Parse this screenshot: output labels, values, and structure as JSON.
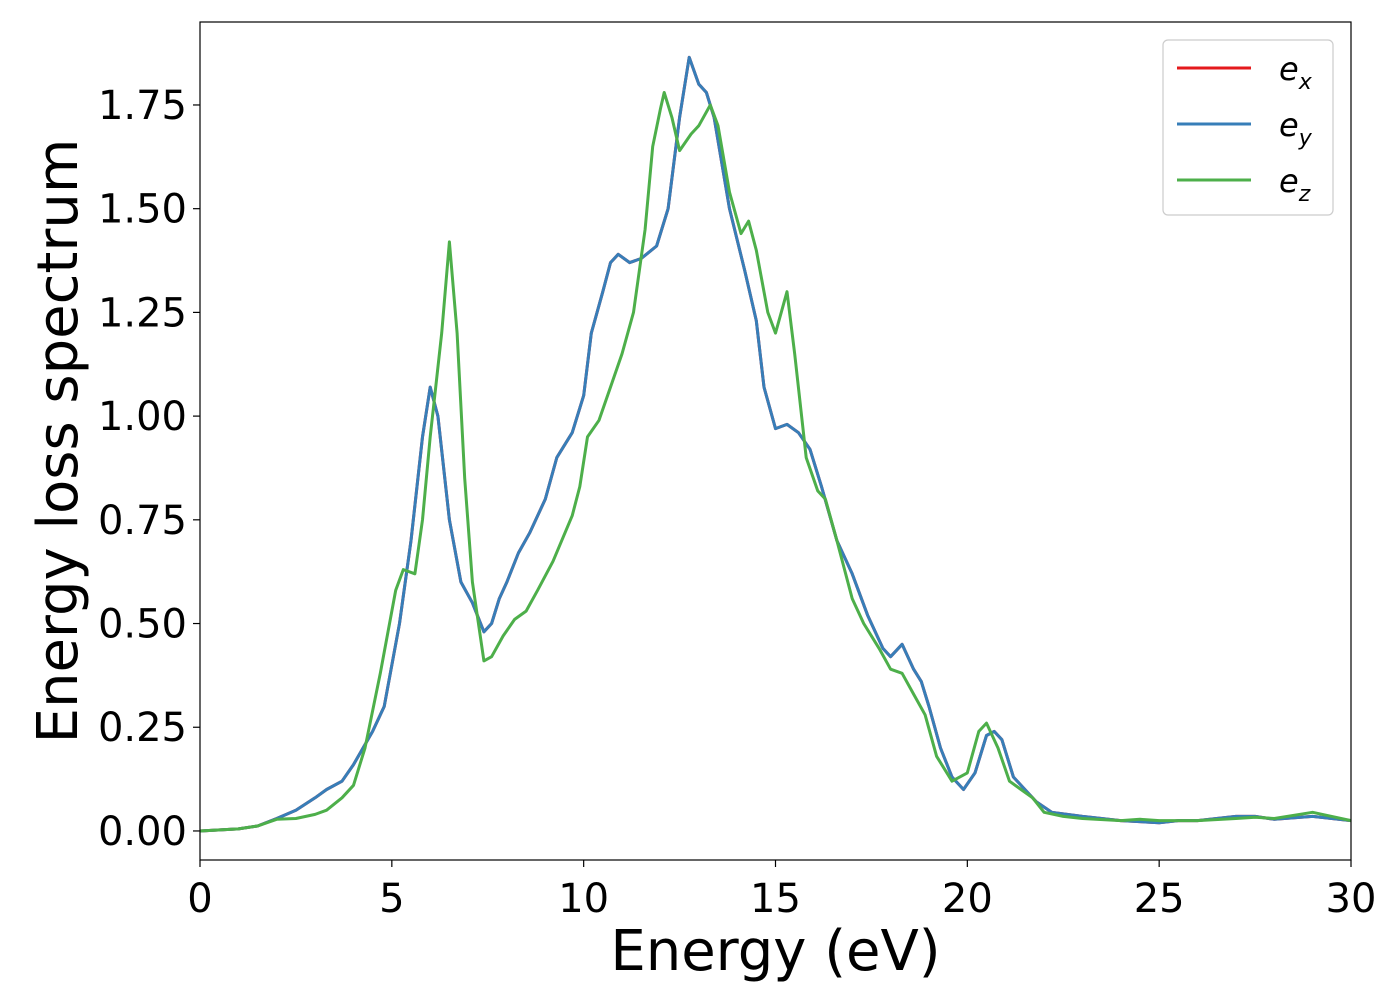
{
  "chart_data": {
    "type": "line",
    "xlabel": "Energy (eV)",
    "ylabel": "Energy loss spectrum",
    "xlim": [
      0,
      30
    ],
    "ylim": [
      -0.07,
      1.95
    ],
    "xticks": [
      0,
      5,
      10,
      15,
      20,
      25,
      30
    ],
    "xtick_labels": [
      "0",
      "5",
      "10",
      "15",
      "20",
      "25",
      "30"
    ],
    "yticks": [
      0,
      0.25,
      0.5,
      0.75,
      1.0,
      1.25,
      1.5,
      1.75
    ],
    "ytick_labels": [
      "0.00",
      "0.25",
      "0.50",
      "0.75",
      "1.00",
      "1.25",
      "1.50",
      "1.75"
    ],
    "grid": false,
    "legend_position": "top-right",
    "series": [
      {
        "name": "e_x",
        "legend_base": "e",
        "legend_sub": "x",
        "color": "#e41a1c",
        "points": [
          [
            0,
            0
          ],
          [
            1,
            0.005
          ],
          [
            1.5,
            0.012
          ],
          [
            2,
            0.03
          ],
          [
            2.5,
            0.05
          ],
          [
            3,
            0.08
          ],
          [
            3.3,
            0.1
          ],
          [
            3.7,
            0.12
          ],
          [
            4,
            0.16
          ],
          [
            4.5,
            0.24
          ],
          [
            4.8,
            0.3
          ],
          [
            5.2,
            0.5
          ],
          [
            5.5,
            0.7
          ],
          [
            5.8,
            0.95
          ],
          [
            6,
            1.07
          ],
          [
            6.2,
            1.0
          ],
          [
            6.5,
            0.75
          ],
          [
            6.8,
            0.6
          ],
          [
            7.1,
            0.55
          ],
          [
            7.4,
            0.48
          ],
          [
            7.6,
            0.5
          ],
          [
            7.8,
            0.56
          ],
          [
            8,
            0.6
          ],
          [
            8.3,
            0.67
          ],
          [
            8.6,
            0.72
          ],
          [
            9,
            0.8
          ],
          [
            9.3,
            0.9
          ],
          [
            9.7,
            0.96
          ],
          [
            10,
            1.05
          ],
          [
            10.2,
            1.2
          ],
          [
            10.5,
            1.3
          ],
          [
            10.7,
            1.37
          ],
          [
            10.9,
            1.39
          ],
          [
            11.2,
            1.37
          ],
          [
            11.5,
            1.38
          ],
          [
            11.9,
            1.41
          ],
          [
            12.2,
            1.5
          ],
          [
            12.5,
            1.72
          ],
          [
            12.75,
            1.865
          ],
          [
            13.0,
            1.8
          ],
          [
            13.2,
            1.78
          ],
          [
            13.4,
            1.72
          ],
          [
            13.8,
            1.5
          ],
          [
            14.2,
            1.35
          ],
          [
            14.5,
            1.23
          ],
          [
            14.7,
            1.07
          ],
          [
            15,
            0.97
          ],
          [
            15.3,
            0.98
          ],
          [
            15.6,
            0.96
          ],
          [
            15.9,
            0.92
          ],
          [
            16.2,
            0.83
          ],
          [
            16.6,
            0.7
          ],
          [
            17,
            0.62
          ],
          [
            17.4,
            0.52
          ],
          [
            17.8,
            0.44
          ],
          [
            18.0,
            0.42
          ],
          [
            18.3,
            0.45
          ],
          [
            18.6,
            0.39
          ],
          [
            18.8,
            0.36
          ],
          [
            19,
            0.3
          ],
          [
            19.3,
            0.2
          ],
          [
            19.6,
            0.13
          ],
          [
            19.9,
            0.1
          ],
          [
            20.2,
            0.14
          ],
          [
            20.5,
            0.23
          ],
          [
            20.7,
            0.24
          ],
          [
            20.9,
            0.22
          ],
          [
            21.2,
            0.13
          ],
          [
            21.5,
            0.1
          ],
          [
            21.8,
            0.07
          ],
          [
            22.2,
            0.045
          ],
          [
            23,
            0.035
          ],
          [
            24,
            0.025
          ],
          [
            25,
            0.02
          ],
          [
            25.5,
            0.025
          ],
          [
            26,
            0.025
          ],
          [
            27,
            0.035
          ],
          [
            27.5,
            0.035
          ],
          [
            28,
            0.028
          ],
          [
            29,
            0.035
          ],
          [
            30,
            0.025
          ]
        ]
      },
      {
        "name": "e_y",
        "legend_base": "e",
        "legend_sub": "y",
        "color": "#377eb8",
        "points": [
          [
            0,
            0
          ],
          [
            1,
            0.005
          ],
          [
            1.5,
            0.012
          ],
          [
            2,
            0.03
          ],
          [
            2.5,
            0.05
          ],
          [
            3,
            0.08
          ],
          [
            3.3,
            0.1
          ],
          [
            3.7,
            0.12
          ],
          [
            4,
            0.16
          ],
          [
            4.5,
            0.24
          ],
          [
            4.8,
            0.3
          ],
          [
            5.2,
            0.5
          ],
          [
            5.5,
            0.7
          ],
          [
            5.8,
            0.95
          ],
          [
            6,
            1.07
          ],
          [
            6.2,
            1.0
          ],
          [
            6.5,
            0.75
          ],
          [
            6.8,
            0.6
          ],
          [
            7.1,
            0.55
          ],
          [
            7.4,
            0.48
          ],
          [
            7.6,
            0.5
          ],
          [
            7.8,
            0.56
          ],
          [
            8,
            0.6
          ],
          [
            8.3,
            0.67
          ],
          [
            8.6,
            0.72
          ],
          [
            9,
            0.8
          ],
          [
            9.3,
            0.9
          ],
          [
            9.7,
            0.96
          ],
          [
            10,
            1.05
          ],
          [
            10.2,
            1.2
          ],
          [
            10.5,
            1.3
          ],
          [
            10.7,
            1.37
          ],
          [
            10.9,
            1.39
          ],
          [
            11.2,
            1.37
          ],
          [
            11.5,
            1.38
          ],
          [
            11.9,
            1.41
          ],
          [
            12.2,
            1.5
          ],
          [
            12.5,
            1.72
          ],
          [
            12.75,
            1.865
          ],
          [
            13.0,
            1.8
          ],
          [
            13.2,
            1.78
          ],
          [
            13.4,
            1.72
          ],
          [
            13.8,
            1.5
          ],
          [
            14.2,
            1.35
          ],
          [
            14.5,
            1.23
          ],
          [
            14.7,
            1.07
          ],
          [
            15,
            0.97
          ],
          [
            15.3,
            0.98
          ],
          [
            15.6,
            0.96
          ],
          [
            15.9,
            0.92
          ],
          [
            16.2,
            0.83
          ],
          [
            16.6,
            0.7
          ],
          [
            17,
            0.62
          ],
          [
            17.4,
            0.52
          ],
          [
            17.8,
            0.44
          ],
          [
            18.0,
            0.42
          ],
          [
            18.3,
            0.45
          ],
          [
            18.6,
            0.39
          ],
          [
            18.8,
            0.36
          ],
          [
            19,
            0.3
          ],
          [
            19.3,
            0.2
          ],
          [
            19.6,
            0.13
          ],
          [
            19.9,
            0.1
          ],
          [
            20.2,
            0.14
          ],
          [
            20.5,
            0.23
          ],
          [
            20.7,
            0.24
          ],
          [
            20.9,
            0.22
          ],
          [
            21.2,
            0.13
          ],
          [
            21.5,
            0.1
          ],
          [
            21.8,
            0.07
          ],
          [
            22.2,
            0.045
          ],
          [
            23,
            0.035
          ],
          [
            24,
            0.025
          ],
          [
            25,
            0.02
          ],
          [
            25.5,
            0.025
          ],
          [
            26,
            0.025
          ],
          [
            27,
            0.035
          ],
          [
            27.5,
            0.035
          ],
          [
            28,
            0.028
          ],
          [
            29,
            0.035
          ],
          [
            30,
            0.025
          ]
        ]
      },
      {
        "name": "e_z",
        "legend_base": "e",
        "legend_sub": "z",
        "color": "#4daf4a",
        "points": [
          [
            0,
            0
          ],
          [
            1,
            0.005
          ],
          [
            1.5,
            0.012
          ],
          [
            2,
            0.028
          ],
          [
            2.5,
            0.03
          ],
          [
            3,
            0.04
          ],
          [
            3.3,
            0.05
          ],
          [
            3.7,
            0.08
          ],
          [
            4,
            0.11
          ],
          [
            4.3,
            0.2
          ],
          [
            4.7,
            0.38
          ],
          [
            5.1,
            0.58
          ],
          [
            5.3,
            0.63
          ],
          [
            5.6,
            0.62
          ],
          [
            5.8,
            0.75
          ],
          [
            6.0,
            0.95
          ],
          [
            6.3,
            1.2
          ],
          [
            6.5,
            1.42
          ],
          [
            6.7,
            1.2
          ],
          [
            6.9,
            0.85
          ],
          [
            7.1,
            0.6
          ],
          [
            7.4,
            0.41
          ],
          [
            7.6,
            0.42
          ],
          [
            7.9,
            0.47
          ],
          [
            8.2,
            0.51
          ],
          [
            8.5,
            0.53
          ],
          [
            8.8,
            0.58
          ],
          [
            9.2,
            0.65
          ],
          [
            9.7,
            0.76
          ],
          [
            9.9,
            0.83
          ],
          [
            10.1,
            0.95
          ],
          [
            10.4,
            0.99
          ],
          [
            10.7,
            1.07
          ],
          [
            11.0,
            1.15
          ],
          [
            11.3,
            1.25
          ],
          [
            11.6,
            1.45
          ],
          [
            11.8,
            1.65
          ],
          [
            12.0,
            1.74
          ],
          [
            12.1,
            1.78
          ],
          [
            12.3,
            1.72
          ],
          [
            12.5,
            1.64
          ],
          [
            12.8,
            1.68
          ],
          [
            13.0,
            1.7
          ],
          [
            13.3,
            1.75
          ],
          [
            13.5,
            1.7
          ],
          [
            13.8,
            1.54
          ],
          [
            14.1,
            1.44
          ],
          [
            14.3,
            1.47
          ],
          [
            14.5,
            1.4
          ],
          [
            14.8,
            1.25
          ],
          [
            15.0,
            1.2
          ],
          [
            15.3,
            1.3
          ],
          [
            15.5,
            1.15
          ],
          [
            15.8,
            0.9
          ],
          [
            16.1,
            0.82
          ],
          [
            16.3,
            0.8
          ],
          [
            16.6,
            0.7
          ],
          [
            17,
            0.56
          ],
          [
            17.3,
            0.5
          ],
          [
            17.7,
            0.44
          ],
          [
            18.0,
            0.39
          ],
          [
            18.3,
            0.38
          ],
          [
            18.6,
            0.33
          ],
          [
            18.9,
            0.28
          ],
          [
            19.2,
            0.18
          ],
          [
            19.6,
            0.12
          ],
          [
            20.0,
            0.14
          ],
          [
            20.3,
            0.24
          ],
          [
            20.5,
            0.26
          ],
          [
            20.8,
            0.2
          ],
          [
            21.1,
            0.12
          ],
          [
            21.4,
            0.1
          ],
          [
            21.7,
            0.08
          ],
          [
            22,
            0.045
          ],
          [
            22.5,
            0.035
          ],
          [
            23,
            0.03
          ],
          [
            24,
            0.025
          ],
          [
            24.5,
            0.028
          ],
          [
            25,
            0.025
          ],
          [
            26,
            0.025
          ],
          [
            27,
            0.03
          ],
          [
            27.5,
            0.033
          ],
          [
            28,
            0.03
          ],
          [
            29,
            0.045
          ],
          [
            30,
            0.025
          ]
        ]
      }
    ]
  }
}
